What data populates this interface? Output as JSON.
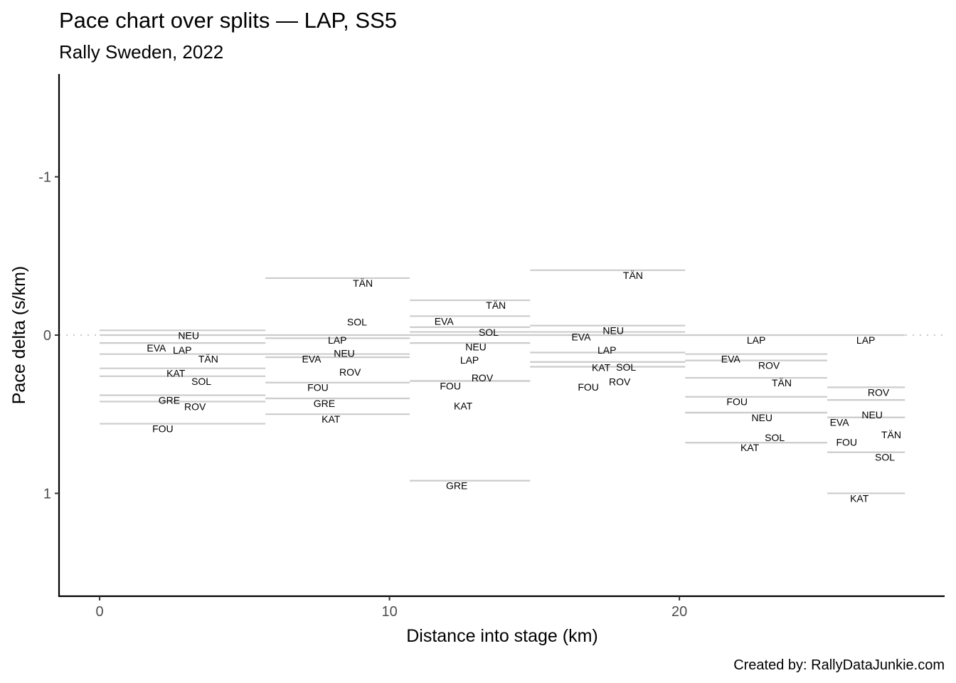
{
  "chart_data": {
    "type": "line",
    "title": "Pace chart over splits — LAP, SS5",
    "subtitle": "Rally Sweden, 2022",
    "xlabel": "Distance into stage (km)",
    "ylabel": "Pace delta (s/km)",
    "caption": "Created by: RallyDataJunkie.com",
    "xlim": [
      -1.4,
      29.15
    ],
    "ylim": [
      1.65,
      -1.65
    ],
    "y_reversed": true,
    "x_ticks": [
      0,
      10,
      20
    ],
    "x_tick_labels": [
      "0",
      "10",
      "20"
    ],
    "y_ticks": [
      -1,
      0,
      1
    ],
    "y_tick_labels": [
      "-1",
      "0",
      "1"
    ],
    "grid": false,
    "reference_line": {
      "y": 0,
      "style": "dotted"
    },
    "segments": [
      {
        "start": 0,
        "end": 5.72,
        "drivers": [
          {
            "name": "NEU",
            "pace": -0.03,
            "label_x": 3.07
          },
          {
            "name": "LAP",
            "pace": 0.0,
            "label_x": 2.85
          },
          {
            "name": "EVA",
            "pace": 0.05,
            "label_x": 1.96
          },
          {
            "name": "TÄN",
            "pace": 0.12,
            "label_x": 3.75
          },
          {
            "name": "KAT",
            "pace": 0.21,
            "label_x": 2.63
          },
          {
            "name": "SOL",
            "pace": 0.26,
            "label_x": 3.51
          },
          {
            "name": "GRE",
            "pace": 0.38,
            "label_x": 2.4
          },
          {
            "name": "ROV",
            "pace": 0.42,
            "label_x": 3.29
          },
          {
            "name": "FOU",
            "pace": 0.56,
            "label_x": 2.18
          }
        ]
      },
      {
        "start": 5.72,
        "end": 10.7,
        "drivers": [
          {
            "name": "TÄN",
            "pace": -0.36,
            "label_x": 9.08
          },
          {
            "name": "LAP",
            "pace": 0.0,
            "label_x": 8.2
          },
          {
            "name": "NEU",
            "pace": 0.02,
            "label_x": 8.44
          },
          {
            "name": "SOL",
            "pace": 0.02,
            "label_x": 8.88
          },
          {
            "name": "EVA",
            "pace": 0.12,
            "label_x": 7.31
          },
          {
            "name": "ROV",
            "pace": 0.14,
            "label_x": 8.64
          },
          {
            "name": "FOU",
            "pace": 0.3,
            "label_x": 7.53
          },
          {
            "name": "GRE",
            "pace": 0.4,
            "label_x": 7.75
          },
          {
            "name": "KAT",
            "pace": 0.5,
            "label_x": 7.98
          }
        ]
      },
      {
        "start": 10.7,
        "end": 14.85,
        "drivers": [
          {
            "name": "TÄN",
            "pace": -0.22,
            "label_x": 13.67
          },
          {
            "name": "EVA",
            "pace": -0.12,
            "label_x": 11.88
          },
          {
            "name": "SOL",
            "pace": -0.05,
            "label_x": 13.42
          },
          {
            "name": "NEU",
            "pace": -0.02,
            "label_x": 12.98
          },
          {
            "name": "LAP",
            "pace": 0.0,
            "label_x": 12.76
          },
          {
            "name": "ROV",
            "pace": 0.05,
            "label_x": 13.2
          },
          {
            "name": "FOU",
            "pace": 0.29,
            "label_x": 12.1
          },
          {
            "name": "KAT",
            "pace": 0.29,
            "label_x": 12.54
          },
          {
            "name": "GRE",
            "pace": 0.92,
            "label_x": 12.32
          }
        ]
      },
      {
        "start": 14.85,
        "end": 20.2,
        "drivers": [
          {
            "name": "TÄN",
            "pace": -0.41,
            "label_x": 18.4
          },
          {
            "name": "NEU",
            "pace": -0.06,
            "label_x": 17.72
          },
          {
            "name": "EVA",
            "pace": -0.02,
            "label_x": 16.61
          },
          {
            "name": "LAP",
            "pace": 0.0,
            "label_x": 17.5
          },
          {
            "name": "KAT",
            "pace": 0.11,
            "label_x": 17.3
          },
          {
            "name": "FOU",
            "pace": 0.17,
            "label_x": 16.86
          },
          {
            "name": "SOL",
            "pace": 0.17,
            "label_x": 18.16
          },
          {
            "name": "ROV",
            "pace": 0.2,
            "label_x": 17.94
          }
        ]
      },
      {
        "start": 20.2,
        "end": 25.1,
        "drivers": [
          {
            "name": "LAP",
            "pace": 0.0,
            "label_x": 22.65
          },
          {
            "name": "EVA",
            "pace": 0.12,
            "label_x": 21.77
          },
          {
            "name": "ROV",
            "pace": 0.16,
            "label_x": 23.09
          },
          {
            "name": "TÄN",
            "pace": 0.27,
            "label_x": 23.53
          },
          {
            "name": "FOU",
            "pace": 0.39,
            "label_x": 21.99
          },
          {
            "name": "NEU",
            "pace": 0.49,
            "label_x": 22.85
          },
          {
            "name": "SOL",
            "pace": 0.49,
            "label_x": 23.29
          },
          {
            "name": "KAT",
            "pace": 0.68,
            "label_x": 22.43
          }
        ]
      },
      {
        "start": 25.1,
        "end": 27.78,
        "drivers": [
          {
            "name": "LAP",
            "pace": 0.0,
            "label_x": 26.43
          },
          {
            "name": "ROV",
            "pace": 0.33,
            "label_x": 26.87
          },
          {
            "name": "NEU",
            "pace": 0.41,
            "label_x": 26.65
          },
          {
            "name": "TÄN",
            "pace": 0.41,
            "label_x": 27.31
          },
          {
            "name": "EVA",
            "pace": 0.52,
            "label_x": 25.52
          },
          {
            "name": "FOU",
            "pace": 0.52,
            "label_x": 25.77
          },
          {
            "name": "SOL",
            "pace": 0.74,
            "label_x": 27.09
          },
          {
            "name": "KAT",
            "pace": 1.0,
            "label_x": 26.21
          }
        ]
      }
    ]
  }
}
